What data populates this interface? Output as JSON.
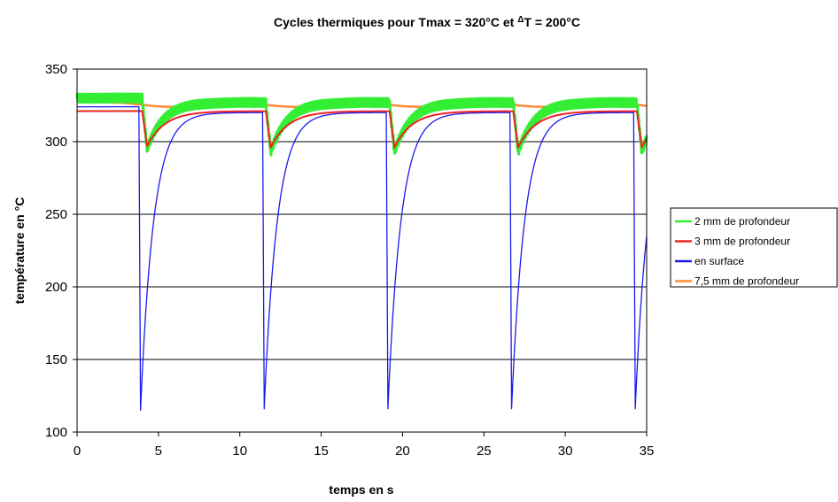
{
  "chart_data": {
    "type": "line",
    "title_prefix": "Cycles thermiques pour Tmax = 320°C et ",
    "title_delta": "Δ",
    "title_suffix": "T = 200°C",
    "xlabel": "temps en s",
    "ylabel": "température en °C",
    "xlim": [
      0,
      35
    ],
    "ylim": [
      100,
      350
    ],
    "xticks": [
      "0",
      "5",
      "10",
      "15",
      "20",
      "25",
      "30",
      "35"
    ],
    "yticks": [
      "100",
      "150",
      "200",
      "250",
      "300",
      "350"
    ],
    "grid": "horizontal",
    "legend_position": "right",
    "period": 7.6,
    "series": [
      {
        "name": "2 mm de profondeur",
        "color": "#33ee33",
        "first_cycle": {
          "start": 4.0,
          "plateau": 330,
          "min": 295,
          "recovered": 325
        },
        "cycle": {
          "start": 4.0,
          "plateau": 327,
          "min": 293
        }
      },
      {
        "name": "3 mm de profondeur",
        "color": "#ee2222",
        "first_cycle": {
          "start": 4.0,
          "plateau": 321,
          "min": 297
        },
        "cycle": {
          "start": 4.0,
          "plateau": 321,
          "min": 296
        }
      },
      {
        "name": "en surface",
        "color": "#1a1aee",
        "first_cycle": {
          "start": 3.8,
          "plateau": 324,
          "min": 115
        },
        "cycle": {
          "start": 3.8,
          "plateau": 320,
          "min": 116
        }
      },
      {
        "name": "7,5 mm de profondeur",
        "color": "#ff8833",
        "first_cycle": {
          "start": 0,
          "plateau": 328,
          "min": 324
        },
        "cycle": {
          "start": 0,
          "plateau": 327,
          "min": 324
        }
      }
    ]
  }
}
